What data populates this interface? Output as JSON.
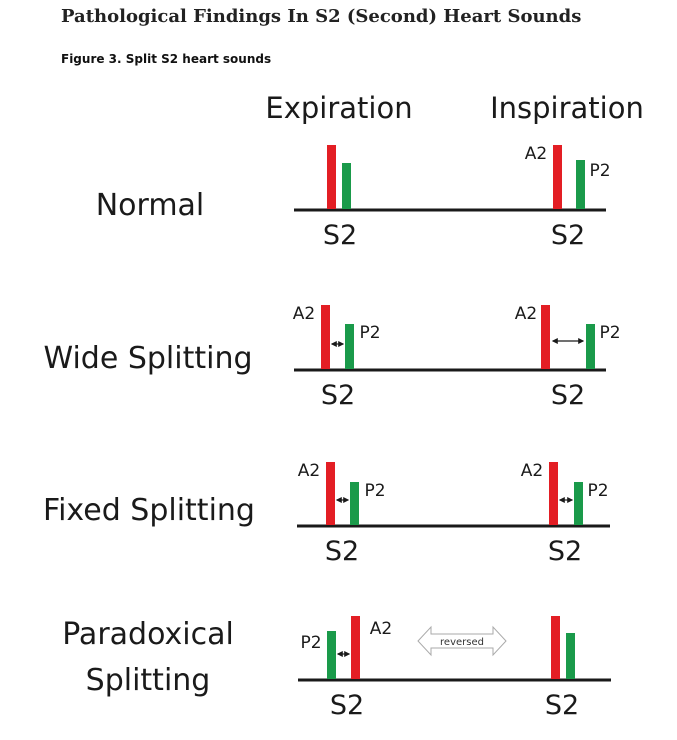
{
  "page": {
    "title": "Pathological Findings In S2 (Second) Heart Sounds",
    "caption": "Figure 3. Split S2 heart sounds"
  },
  "columns": {
    "expiration": "Expiration",
    "inspiration": "Inspiration"
  },
  "rows": {
    "normal": {
      "label": "Normal"
    },
    "wide": {
      "label": "Wide Splitting"
    },
    "fixed": {
      "label": "Fixed Splitting"
    },
    "paradoxical": {
      "label_line1": "Paradoxical",
      "label_line2": "Splitting"
    }
  },
  "labels": {
    "s2": "S2",
    "a2": "A2",
    "p2": "P2",
    "reversed": "reversed"
  },
  "colors": {
    "a2": "#e31e24",
    "p2": "#1a9a4a",
    "baseline": "#1a1a1a"
  }
}
